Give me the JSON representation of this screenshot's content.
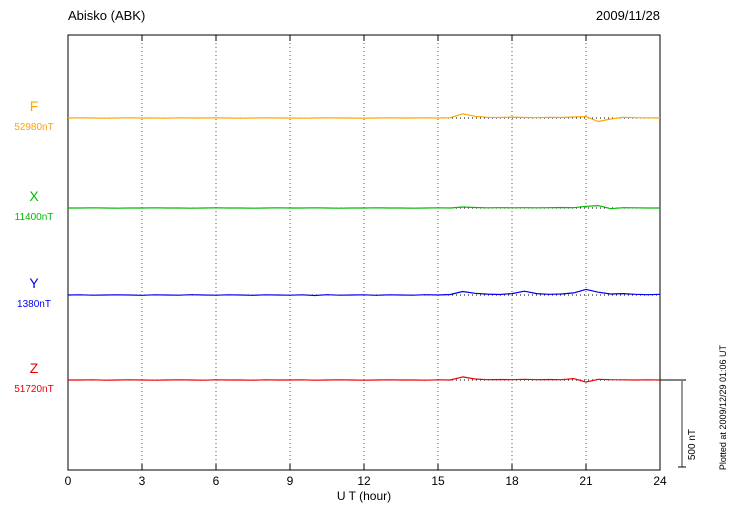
{
  "header": {
    "station": "Abisko (ABK)",
    "date": "2009/11/28"
  },
  "footer_note": "Plotted at 2009/12/29 01:06 UT",
  "chart_data": {
    "type": "line",
    "title": "Abisko (ABK)",
    "subtitle": "2009/11/28",
    "xlabel": "U T (hour)",
    "x_min": 0,
    "x_max": 24,
    "x_step_hours": 0.5,
    "x_ticks": [
      0,
      3,
      6,
      9,
      12,
      15,
      18,
      21,
      24
    ],
    "grid": "dotted-vertical-at-3h-intervals",
    "legend_position": "left-of-each-trace",
    "scale_bar_nT": 500,
    "scale_bar_label": "500 nT",
    "series": [
      {
        "name": "F",
        "baseline_label": "52980nT",
        "baseline_nT": 52980,
        "color": "#FFA500",
        "deviation_nT": [
          0,
          1,
          0,
          -1,
          0,
          1,
          0,
          0,
          -1,
          1,
          0,
          0,
          1,
          0,
          -1,
          0,
          1,
          0,
          0,
          -1,
          0,
          1,
          0,
          0,
          -1,
          0,
          1,
          0,
          0,
          1,
          0,
          2,
          24,
          10,
          4,
          3,
          5,
          3,
          2,
          4,
          3,
          6,
          8,
          -20,
          -6,
          4,
          2,
          1,
          0
        ]
      },
      {
        "name": "X",
        "baseline_label": "11400nT",
        "baseline_nT": 11400,
        "color": "#00BB00",
        "deviation_nT": [
          0,
          0,
          1,
          0,
          -1,
          0,
          0,
          1,
          0,
          0,
          -1,
          0,
          1,
          0,
          0,
          -1,
          0,
          1,
          0,
          0,
          1,
          0,
          -1,
          0,
          0,
          1,
          0,
          0,
          -1,
          0,
          1,
          0,
          6,
          3,
          1,
          2,
          1,
          2,
          1,
          2,
          3,
          2,
          10,
          14,
          -4,
          2,
          1,
          0,
          0
        ]
      },
      {
        "name": "Y",
        "baseline_label": "1380nT",
        "baseline_nT": 1380,
        "color": "#0000EE",
        "deviation_nT": [
          0,
          1,
          -1,
          0,
          1,
          0,
          -2,
          1,
          0,
          -1,
          2,
          0,
          -1,
          1,
          0,
          -2,
          1,
          0,
          -1,
          1,
          -3,
          2,
          -1,
          0,
          1,
          -2,
          1,
          0,
          -1,
          2,
          0,
          3,
          20,
          10,
          5,
          3,
          8,
          22,
          8,
          4,
          6,
          12,
          32,
          16,
          6,
          8,
          4,
          2,
          4
        ]
      },
      {
        "name": "Z",
        "baseline_label": "51720nT",
        "baseline_nT": 51720,
        "color": "#EE0000",
        "deviation_nT": [
          0,
          0,
          1,
          -1,
          0,
          1,
          0,
          -1,
          0,
          1,
          0,
          -1,
          1,
          0,
          0,
          -1,
          1,
          0,
          0,
          1,
          -1,
          0,
          1,
          0,
          -1,
          0,
          1,
          0,
          0,
          -1,
          1,
          0,
          18,
          6,
          2,
          3,
          2,
          4,
          2,
          3,
          2,
          8,
          -12,
          4,
          2,
          1,
          0,
          1,
          0
        ]
      }
    ]
  }
}
